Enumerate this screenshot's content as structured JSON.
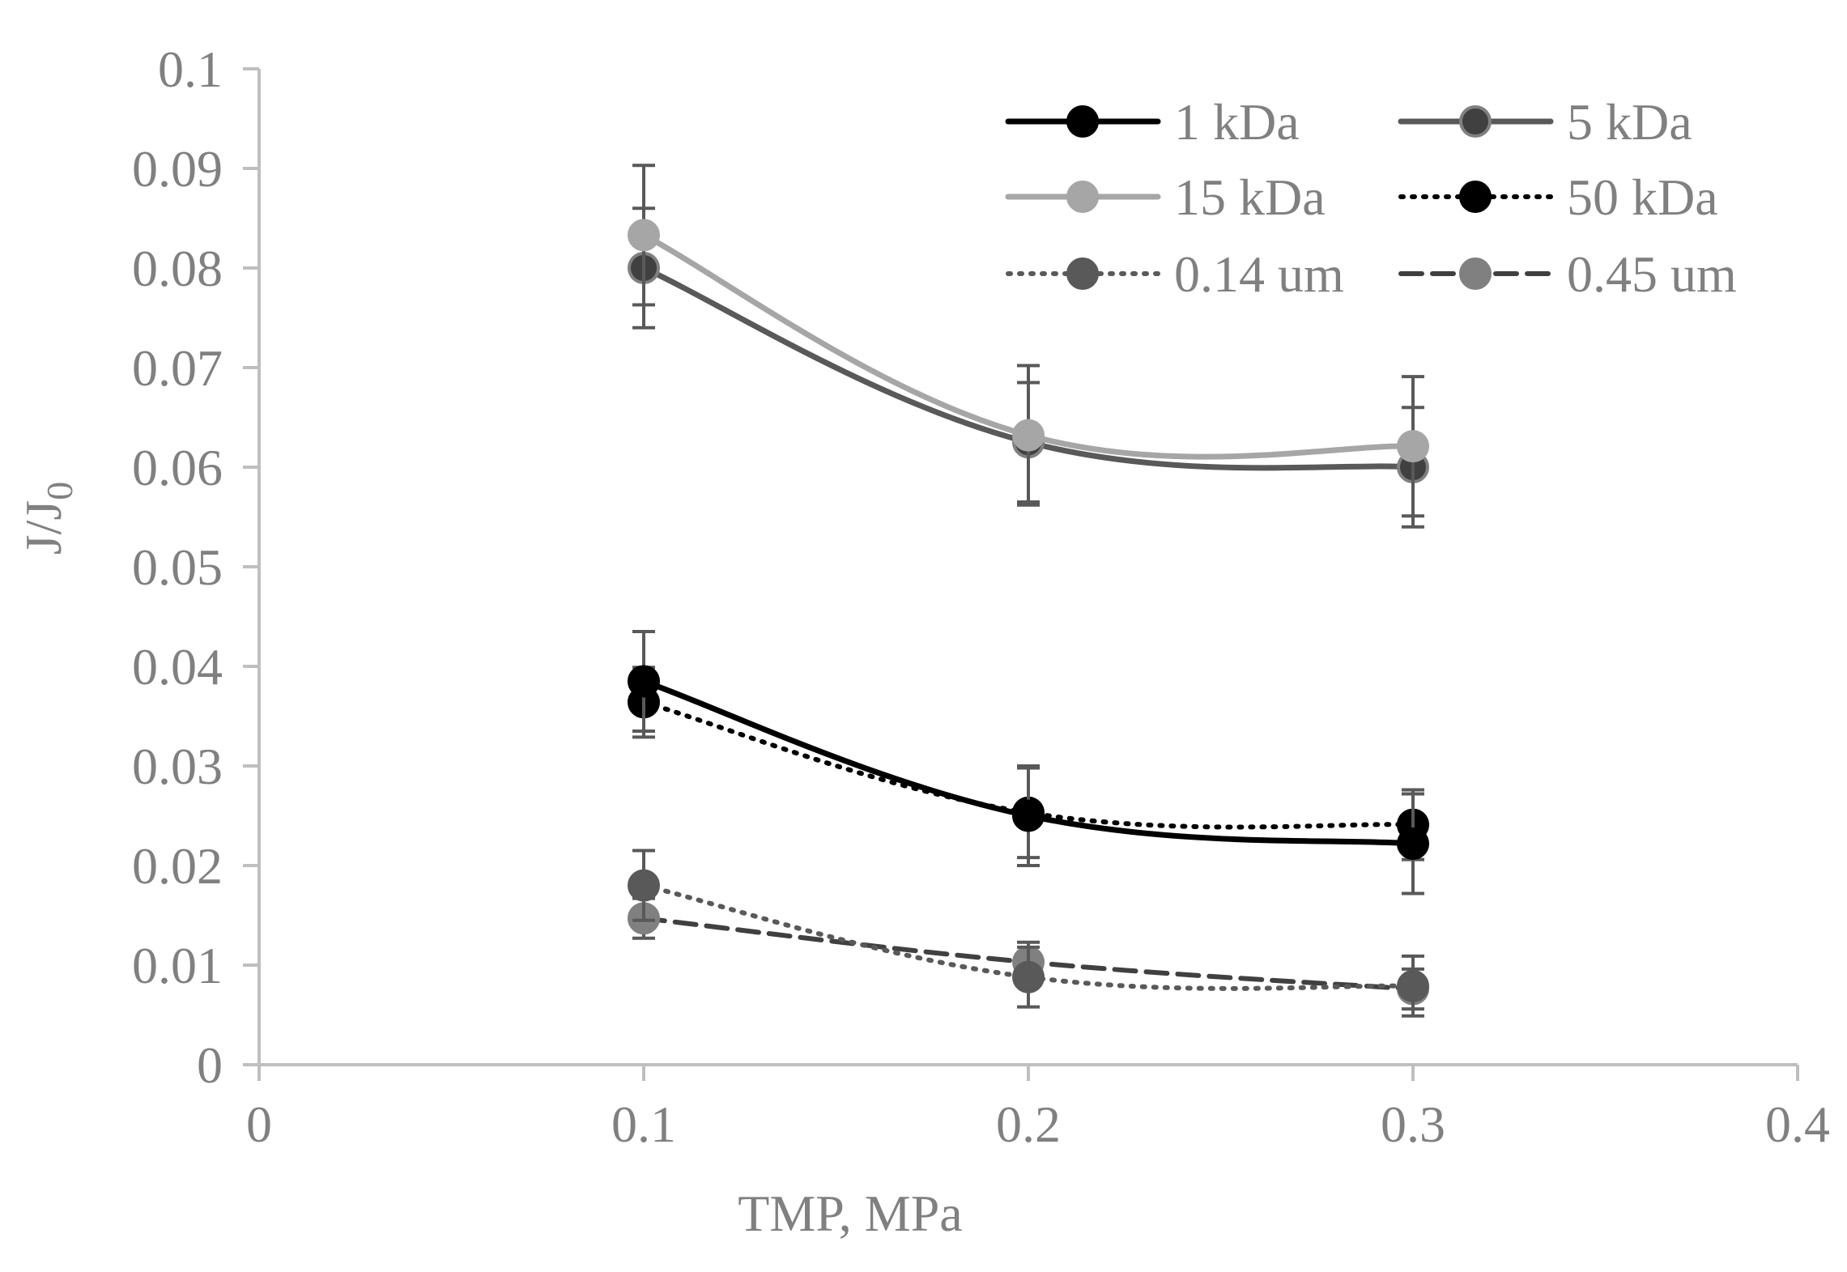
{
  "chart_data": {
    "type": "line",
    "title": "",
    "xlabel": "TMP, MPa",
    "ylabel": "J/J",
    "ylabel_subscript": "0",
    "xlim": [
      0,
      0.4
    ],
    "ylim": [
      0,
      0.1
    ],
    "x_ticks": [
      "0",
      "0.1",
      "0.2",
      "0.3",
      "0.4"
    ],
    "y_ticks": [
      "0",
      "0.01",
      "0.02",
      "0.03",
      "0.04",
      "0.05",
      "0.06",
      "0.07",
      "0.08",
      "0.09",
      "0.1"
    ],
    "grid": false,
    "legend_position": "top-right",
    "x": [
      0.1,
      0.2,
      0.3
    ],
    "series": [
      {
        "name": "1 kDa",
        "values": [
          0.0385,
          0.025,
          0.0222
        ],
        "errors": [
          0.005,
          0.005,
          0.005
        ],
        "color": "#000000",
        "marker_color": "#000000",
        "dash": "solid"
      },
      {
        "name": "5 kDa",
        "values": [
          0.08,
          0.0625,
          0.06
        ],
        "errors": [
          0.006,
          0.006,
          0.006
        ],
        "color": "#595959",
        "marker_color": "#404040",
        "dash": "solid"
      },
      {
        "name": "15 kDa",
        "values": [
          0.0833,
          0.0632,
          0.0621
        ],
        "errors": [
          0.007,
          0.007,
          0.007
        ],
        "color": "#a6a6a6",
        "marker_color": "#a6a6a6",
        "dash": "solid"
      },
      {
        "name": "50 kDa",
        "values": [
          0.0364,
          0.0253,
          0.0241
        ],
        "errors": [
          0.0035,
          0.0045,
          0.0035
        ],
        "color": "#000000",
        "marker_color": "#000000",
        "dash": "dotted"
      },
      {
        "name": "0.14 um",
        "values": [
          0.018,
          0.0088,
          0.0079
        ],
        "errors": [
          0.0035,
          0.003,
          0.003
        ],
        "color": "#595959",
        "marker_color": "#595959",
        "dash": "dotted"
      },
      {
        "name": "0.45 um",
        "values": [
          0.0147,
          0.0103,
          0.0076
        ],
        "errors": [
          0.002,
          0.002,
          0.002
        ],
        "color": "#404040",
        "marker_color": "#808080",
        "dash": "dashed"
      }
    ],
    "error_bar_color": "#595959",
    "axis_color": "#bfbfbf"
  }
}
